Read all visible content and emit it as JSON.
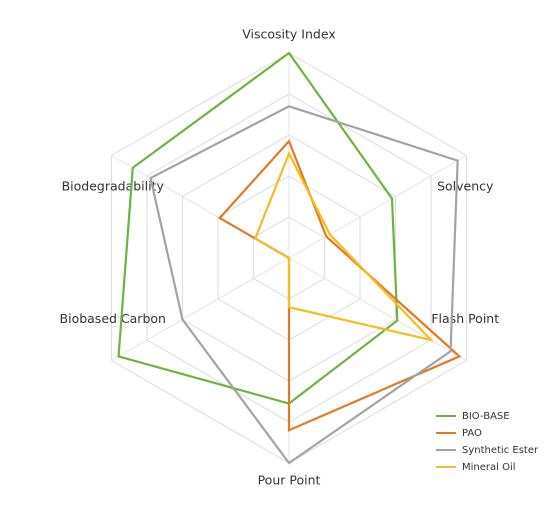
{
  "chart_data": {
    "type": "radar",
    "categories": [
      "Viscosity Index",
      "Solvency",
      "Flash Point",
      "Pour Point",
      "Biobased Carbon",
      "Biodegradability"
    ],
    "rlim": [
      0,
      100
    ],
    "rticks": [
      20,
      40,
      60,
      80,
      100
    ],
    "grid": true,
    "legend": "lower right",
    "series": [
      {
        "name": "BIO-BASE",
        "color": "#6db33f",
        "values": [
          100,
          58,
          61,
          71,
          96,
          88
        ]
      },
      {
        "name": "PAO",
        "color": "#e87722",
        "values": [
          57,
          21,
          96,
          84,
          0,
          39
        ]
      },
      {
        "name": "Synthetic Ester",
        "color": "#a3a3a3",
        "values": [
          74,
          95,
          91,
          100,
          60,
          78
        ]
      },
      {
        "name": "Mineral Oil",
        "color": "#f5bd1f",
        "values": [
          51,
          23,
          80,
          24,
          0,
          19
        ]
      }
    ]
  }
}
